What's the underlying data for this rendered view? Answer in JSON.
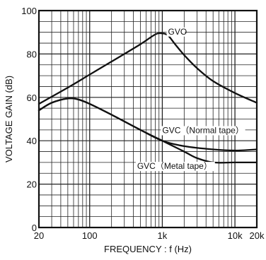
{
  "chart_data": {
    "type": "line",
    "xlabel": "FREQUENCY : f (Hz)",
    "ylabel": "VOLTAGE GAIN (dB)",
    "x_scale": "log",
    "xlim": [
      20,
      20000
    ],
    "ylim": [
      0,
      100
    ],
    "grid": true,
    "x_ticks": [
      {
        "value": 20,
        "label": "20"
      },
      {
        "value": 100,
        "label": "100"
      },
      {
        "value": 1000,
        "label": "1k"
      },
      {
        "value": 10000,
        "label": "10k"
      },
      {
        "value": 20000,
        "label": "20k"
      }
    ],
    "y_ticks": [
      {
        "value": 0,
        "label": "0"
      },
      {
        "value": 20,
        "label": "20"
      },
      {
        "value": 40,
        "label": "40"
      },
      {
        "value": 60,
        "label": "60"
      },
      {
        "value": 80,
        "label": "80"
      },
      {
        "value": 100,
        "label": "100"
      }
    ],
    "series": [
      {
        "name": "GVO",
        "label_x": 1200,
        "label_y": 89,
        "x": [
          20,
          50,
          100,
          200,
          500,
          800,
          1000,
          1200,
          1500,
          2000,
          3000,
          5000,
          10000,
          20000
        ],
        "values": [
          57,
          64.5,
          70.5,
          76.5,
          84.5,
          89,
          89.5,
          88.5,
          84.5,
          79.5,
          73.5,
          67.5,
          62,
          57.5
        ]
      },
      {
        "name": "GVC（Normal tape）",
        "label_x": 1000,
        "label_y": 43.5,
        "x": [
          20,
          30,
          50,
          70,
          100,
          200,
          500,
          1000,
          2000,
          5000,
          10000,
          20000
        ],
        "values": [
          54,
          57.5,
          59.5,
          59,
          57,
          52,
          45,
          40,
          37.5,
          36,
          35.5,
          36
        ]
      },
      {
        "name": "GVC（Metal tape）",
        "label_x": 450,
        "label_y": 27,
        "x": [
          20,
          30,
          50,
          70,
          100,
          200,
          500,
          1000,
          2000,
          3000,
          5000,
          10000,
          20000
        ],
        "values": [
          54,
          57.5,
          59.5,
          59,
          57,
          52,
          45,
          40,
          35,
          32,
          30,
          30,
          30
        ]
      }
    ]
  }
}
